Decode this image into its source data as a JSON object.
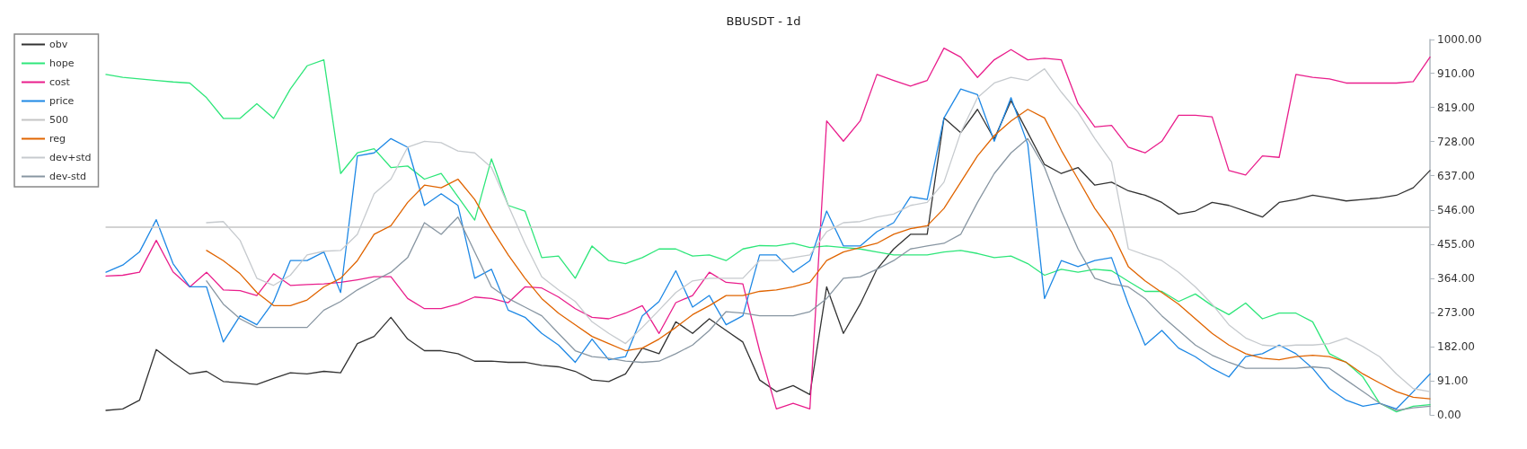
{
  "chart_data": {
    "type": "line",
    "title": "BBUSDT - 1d",
    "categories": [
      null,
      null,
      null,
      null,
      null,
      null,
      null,
      null,
      null,
      null,
      null,
      null,
      null,
      null,
      null,
      null,
      null,
      null,
      null,
      null,
      null,
      null,
      null,
      null,
      null,
      null,
      null,
      null,
      null,
      null,
      null,
      null,
      null,
      null,
      null,
      null,
      null,
      null,
      null,
      null,
      null,
      null,
      null,
      null,
      null,
      null,
      null,
      null,
      null,
      null,
      null,
      null,
      null,
      null,
      null,
      null,
      null,
      null,
      null,
      null,
      null,
      null,
      null,
      null,
      null,
      null,
      null,
      null,
      null,
      null,
      null,
      null,
      null,
      null,
      null,
      null,
      null,
      null,
      null,
      null
    ],
    "series": [
      {
        "name": "obv",
        "color": "#333333",
        "values": [
          12,
          16,
          39,
          174,
          140,
          109,
          116,
          89,
          85,
          81,
          97,
          112,
          109,
          116,
          112,
          190,
          209,
          260,
          202,
          171,
          171,
          163,
          143,
          143,
          140,
          140,
          132,
          128,
          116,
          93,
          89,
          109,
          178,
          163,
          248,
          217,
          256,
          225,
          194,
          93,
          62,
          78,
          54,
          341,
          217,
          295,
          388,
          442,
          481,
          481,
          791,
          752,
          814,
          735,
          837,
          752,
          667,
          643,
          659,
          612,
          620,
          597,
          585,
          566,
          535,
          543,
          566,
          558,
          543,
          527,
          566,
          574,
          585,
          578,
          570,
          574,
          578,
          585,
          605,
          651
        ]
      },
      {
        "name": "hope",
        "color": "#2ee67a",
        "values": [
          907,
          899,
          895,
          891,
          887,
          884,
          845,
          790,
          790,
          829,
          790,
          868,
          930,
          946,
          643,
          698,
          709,
          659,
          663,
          628,
          643,
          581,
          519,
          682,
          558,
          543,
          419,
          423,
          364,
          450,
          411,
          403,
          419,
          442,
          442,
          423,
          426,
          411,
          442,
          451,
          450,
          457,
          446,
          450,
          446,
          442,
          434,
          426,
          426,
          426,
          434,
          438,
          430,
          419,
          423,
          403,
          372,
          388,
          380,
          388,
          384,
          356,
          329,
          329,
          302,
          322,
          291,
          267,
          298,
          256,
          271,
          271,
          248,
          163,
          140,
          101,
          31,
          8,
          23,
          27
        ]
      },
      {
        "name": "cost",
        "color": "#e91e8c",
        "values": [
          370,
          372,
          380,
          465,
          381,
          341,
          380,
          333,
          331,
          318,
          376,
          345,
          347,
          349,
          353,
          360,
          368,
          368,
          310,
          283,
          283,
          295,
          314,
          310,
          299,
          341,
          338,
          314,
          283,
          260,
          256,
          271,
          291,
          217,
          299,
          318,
          380,
          353,
          349,
          171,
          16,
          31,
          16,
          783,
          729,
          783,
          907,
          891,
          876,
          891,
          977,
          953,
          899,
          946,
          973,
          946,
          950,
          946,
          829,
          767,
          771,
          713,
          698,
          729,
          798,
          798,
          794,
          651,
          639,
          690,
          686,
          907,
          899,
          895,
          884,
          884,
          884,
          884,
          888,
          953
        ]
      },
      {
        "name": "price",
        "color": "#1e88e5",
        "values": [
          380,
          399,
          434,
          520,
          403,
          341,
          341,
          194,
          264,
          240,
          302,
          411,
          411,
          434,
          326,
          690,
          698,
          736,
          713,
          558,
          589,
          558,
          364,
          388,
          279,
          260,
          217,
          186,
          140,
          202,
          147,
          155,
          264,
          302,
          384,
          287,
          318,
          240,
          264,
          426,
          426,
          380,
          411,
          543,
          450,
          450,
          488,
          512,
          581,
          574,
          791,
          868,
          853,
          729,
          845,
          721,
          310,
          411,
          395,
          411,
          419,
          295,
          186,
          225,
          178,
          155,
          124,
          101,
          155,
          163,
          186,
          163,
          124,
          70,
          39,
          23,
          31,
          16,
          62,
          109
        ]
      },
      {
        "name": "500",
        "color": "#c4c4c4",
        "values": [
          500,
          500,
          500,
          500,
          500,
          500,
          500,
          500,
          500,
          500,
          500,
          500,
          500,
          500,
          500,
          500,
          500,
          500,
          500,
          500,
          500,
          500,
          500,
          500,
          500,
          500,
          500,
          500,
          500,
          500,
          500,
          500,
          500,
          500,
          500,
          500,
          500,
          500,
          500,
          500,
          500,
          500,
          500,
          500,
          500,
          500,
          500,
          500,
          500,
          500,
          500,
          500,
          500,
          500,
          500,
          500,
          500,
          500,
          500,
          500,
          500,
          500,
          500,
          500,
          500,
          500,
          500,
          500,
          500,
          500,
          500,
          500,
          500,
          500,
          500,
          500,
          500,
          500,
          500,
          500
        ]
      },
      {
        "name": "reg",
        "color": "#e06400",
        "values": [
          null,
          null,
          null,
          null,
          null,
          null,
          438,
          411,
          376,
          326,
          291,
          291,
          306,
          341,
          364,
          411,
          481,
          504,
          566,
          612,
          605,
          628,
          574,
          496,
          426,
          364,
          310,
          271,
          240,
          209,
          190,
          171,
          178,
          202,
          233,
          267,
          291,
          318,
          318,
          329,
          333,
          341,
          353,
          411,
          434,
          446,
          457,
          481,
          496,
          504,
          550,
          620,
          690,
          744,
          783,
          814,
          791,
          705,
          628,
          550,
          488,
          395,
          357,
          326,
          295,
          256,
          217,
          186,
          163,
          151,
          147,
          155,
          159,
          155,
          140,
          109,
          85,
          62,
          47,
          43
        ]
      },
      {
        "name": "dev+std",
        "color": "#c6cace",
        "values": [
          null,
          null,
          null,
          null,
          null,
          null,
          512,
          515,
          465,
          364,
          345,
          372,
          426,
          436,
          438,
          481,
          589,
          628,
          713,
          729,
          725,
          703,
          698,
          659,
          558,
          457,
          368,
          333,
          302,
          248,
          217,
          190,
          233,
          279,
          326,
          357,
          364,
          364,
          364,
          411,
          411,
          419,
          426,
          488,
          512,
          515,
          527,
          535,
          558,
          566,
          620,
          752,
          845,
          884,
          899,
          891,
          922,
          860,
          806,
          736,
          674,
          442,
          426,
          411,
          380,
          341,
          295,
          240,
          205,
          186,
          182,
          186,
          186,
          190,
          205,
          182,
          155,
          109,
          70,
          62
        ]
      },
      {
        "name": "dev-std",
        "color": "#8896a2",
        "values": [
          null,
          null,
          null,
          null,
          null,
          null,
          357,
          295,
          256,
          233,
          233,
          233,
          233,
          279,
          302,
          333,
          357,
          380,
          419,
          512,
          481,
          527,
          434,
          341,
          310,
          287,
          264,
          217,
          171,
          155,
          151,
          143,
          140,
          143,
          163,
          186,
          225,
          275,
          271,
          264,
          264,
          264,
          275,
          310,
          364,
          368,
          388,
          411,
          442,
          450,
          457,
          481,
          566,
          643,
          698,
          736,
          659,
          543,
          442,
          364,
          349,
          341,
          310,
          264,
          225,
          186,
          159,
          140,
          124,
          124,
          124,
          124,
          128,
          124,
          93,
          62,
          31,
          12,
          19,
          23
        ]
      }
    ],
    "ylim": [
      0,
      1000
    ],
    "yticks": [
      {
        "value": 0,
        "label": "0.00"
      },
      {
        "value": 91,
        "label": "91.00"
      },
      {
        "value": 182,
        "label": "182.00"
      },
      {
        "value": 273,
        "label": "273.00"
      },
      {
        "value": 364,
        "label": "364.00"
      },
      {
        "value": 455,
        "label": "455.00"
      },
      {
        "value": 546,
        "label": "546.00"
      },
      {
        "value": 637,
        "label": "637.00"
      },
      {
        "value": 728,
        "label": "728.00"
      },
      {
        "value": 819,
        "label": "819.00"
      },
      {
        "value": 910,
        "label": "910.00"
      },
      {
        "value": 1000,
        "label": "1000.00"
      }
    ],
    "tick_labels": "y",
    "grid": false,
    "legend": "top left",
    "marker": "none",
    "line_style": "solid"
  }
}
